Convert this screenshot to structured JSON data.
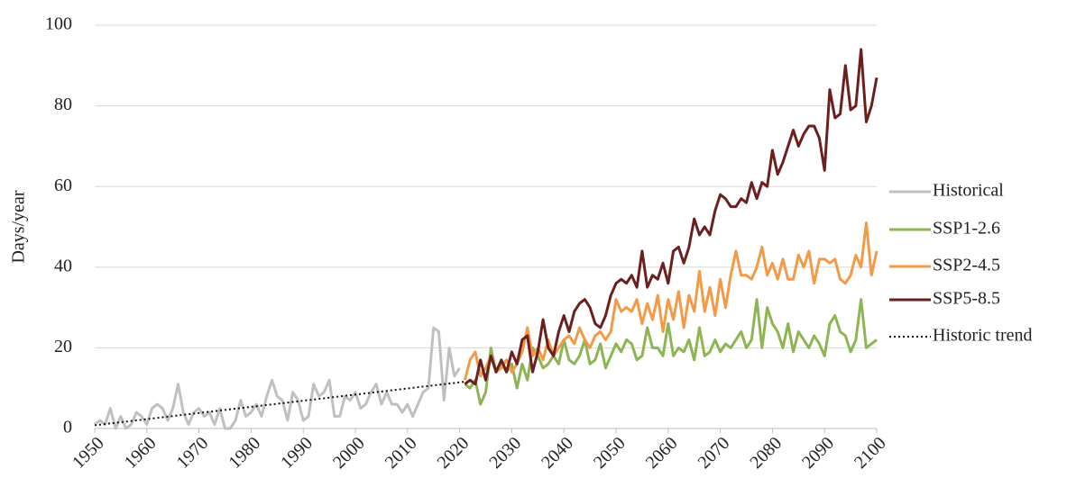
{
  "chart_data": {
    "type": "line",
    "y_label": "Days/year",
    "xlim": [
      1950,
      2100
    ],
    "xticks": [
      1950,
      1960,
      1970,
      1980,
      1990,
      2000,
      2010,
      2020,
      2030,
      2040,
      2050,
      2060,
      2070,
      2080,
      2090,
      2100
    ],
    "ylim": [
      0,
      100
    ],
    "yticks": [
      0,
      20,
      40,
      60,
      80,
      100
    ],
    "grid": true,
    "legend": "right",
    "series": [
      {
        "name": "Historical",
        "color": "#c0c0c0",
        "style": "solid",
        "x": [
          1950,
          1951,
          1952,
          1953,
          1954,
          1955,
          1956,
          1957,
          1958,
          1959,
          1960,
          1961,
          1962,
          1963,
          1964,
          1965,
          1966,
          1967,
          1968,
          1969,
          1970,
          1971,
          1972,
          1973,
          1974,
          1975,
          1976,
          1977,
          1978,
          1979,
          1980,
          1981,
          1982,
          1983,
          1984,
          1985,
          1986,
          1987,
          1988,
          1989,
          1990,
          1991,
          1992,
          1993,
          1994,
          1995,
          1996,
          1997,
          1998,
          1999,
          2000,
          2001,
          2002,
          2003,
          2004,
          2005,
          2006,
          2007,
          2008,
          2009,
          2010,
          2011,
          2012,
          2013,
          2014,
          2015,
          2016,
          2017,
          2018,
          2019,
          2020
        ],
        "values": [
          1,
          2,
          1,
          5,
          0,
          3,
          0,
          1,
          4,
          3,
          1,
          5,
          6,
          5,
          2,
          5,
          11,
          4,
          1,
          4,
          5,
          3,
          4,
          1,
          5,
          0,
          0,
          2,
          7,
          3,
          4,
          6,
          3,
          8,
          12,
          8,
          7,
          2,
          9,
          7,
          2,
          3,
          11,
          8,
          9,
          12,
          3,
          3,
          8,
          7,
          9,
          5,
          6,
          9,
          11,
          6,
          9,
          6,
          6,
          4,
          6,
          3,
          6,
          9,
          10,
          25,
          24,
          7,
          20,
          13,
          15
        ]
      },
      {
        "name": "SSP1-2.6",
        "color": "#8db554",
        "style": "solid",
        "x": [
          2021,
          2022,
          2023,
          2024,
          2025,
          2026,
          2027,
          2028,
          2029,
          2030,
          2031,
          2032,
          2033,
          2034,
          2035,
          2036,
          2037,
          2038,
          2039,
          2040,
          2041,
          2042,
          2043,
          2044,
          2045,
          2046,
          2047,
          2048,
          2049,
          2050,
          2051,
          2052,
          2053,
          2054,
          2055,
          2056,
          2057,
          2058,
          2059,
          2060,
          2061,
          2062,
          2063,
          2064,
          2065,
          2066,
          2067,
          2068,
          2069,
          2070,
          2071,
          2072,
          2073,
          2074,
          2075,
          2076,
          2077,
          2078,
          2079,
          2080,
          2081,
          2082,
          2083,
          2084,
          2085,
          2086,
          2087,
          2088,
          2089,
          2090,
          2091,
          2092,
          2093,
          2094,
          2095,
          2096,
          2097,
          2098,
          2099,
          2100
        ],
        "values": [
          11,
          10,
          12,
          6,
          9,
          20,
          14,
          16,
          14,
          16,
          10,
          16,
          12,
          20,
          18,
          15,
          16,
          18,
          16,
          22,
          17,
          16,
          18,
          22,
          16,
          17,
          21,
          15,
          18,
          21,
          19,
          22,
          21,
          17,
          18,
          25,
          20,
          20,
          18,
          26,
          18,
          20,
          19,
          22,
          17,
          25,
          18,
          19,
          22,
          19,
          21,
          20,
          22,
          24,
          20,
          22,
          32,
          20,
          30,
          26,
          24,
          20,
          26,
          19,
          24,
          22,
          20,
          23,
          21,
          18,
          26,
          28,
          24,
          23,
          19,
          22,
          32,
          20,
          21,
          22
        ]
      },
      {
        "name": "SSP2-4.5",
        "color": "#f39a48",
        "style": "solid",
        "x": [
          2021,
          2022,
          2023,
          2024,
          2025,
          2026,
          2027,
          2028,
          2029,
          2030,
          2031,
          2032,
          2033,
          2034,
          2035,
          2036,
          2037,
          2038,
          2039,
          2040,
          2041,
          2042,
          2043,
          2044,
          2045,
          2046,
          2047,
          2048,
          2049,
          2050,
          2051,
          2052,
          2053,
          2054,
          2055,
          2056,
          2057,
          2058,
          2059,
          2060,
          2061,
          2062,
          2063,
          2064,
          2065,
          2066,
          2067,
          2068,
          2069,
          2070,
          2071,
          2072,
          2073,
          2074,
          2075,
          2076,
          2077,
          2078,
          2079,
          2080,
          2081,
          2082,
          2083,
          2084,
          2085,
          2086,
          2087,
          2088,
          2089,
          2090,
          2091,
          2092,
          2093,
          2094,
          2095,
          2096,
          2097,
          2098,
          2099,
          2100
        ],
        "values": [
          12,
          17,
          19,
          13,
          15,
          18,
          14,
          15,
          17,
          14,
          16,
          19,
          25,
          18,
          20,
          17,
          22,
          18,
          20,
          22,
          23,
          21,
          25,
          22,
          20,
          23,
          24,
          22,
          24,
          32,
          29,
          30,
          29,
          32,
          26,
          31,
          27,
          33,
          24,
          32,
          27,
          34,
          25,
          33,
          29,
          39,
          29,
          35,
          28,
          37,
          30,
          38,
          44,
          38,
          38,
          37,
          40,
          45,
          38,
          41,
          37,
          42,
          37,
          37,
          43,
          40,
          44,
          36,
          42,
          42,
          41,
          42,
          37,
          36,
          38,
          43,
          40,
          51,
          38,
          44
        ]
      },
      {
        "name": "SSP5-8.5",
        "color": "#6b1f1f",
        "style": "solid",
        "x": [
          2021,
          2022,
          2023,
          2024,
          2025,
          2026,
          2027,
          2028,
          2029,
          2030,
          2031,
          2032,
          2033,
          2034,
          2035,
          2036,
          2037,
          2038,
          2039,
          2040,
          2041,
          2042,
          2043,
          2044,
          2045,
          2046,
          2047,
          2048,
          2049,
          2050,
          2051,
          2052,
          2053,
          2054,
          2055,
          2056,
          2057,
          2058,
          2059,
          2060,
          2061,
          2062,
          2063,
          2064,
          2065,
          2066,
          2067,
          2068,
          2069,
          2070,
          2071,
          2072,
          2073,
          2074,
          2075,
          2076,
          2077,
          2078,
          2079,
          2080,
          2081,
          2082,
          2083,
          2084,
          2085,
          2086,
          2087,
          2088,
          2089,
          2090,
          2091,
          2092,
          2093,
          2094,
          2095,
          2096,
          2097,
          2098,
          2099,
          2100
        ],
        "values": [
          11,
          12,
          11,
          17,
          12,
          18,
          14,
          17,
          14,
          19,
          16,
          22,
          23,
          14,
          19,
          27,
          20,
          18,
          24,
          28,
          24,
          29,
          31,
          32,
          30,
          26,
          25,
          28,
          33,
          36,
          37,
          36,
          38,
          35,
          44,
          35,
          38,
          37,
          41,
          36,
          44,
          45,
          41,
          45,
          52,
          48,
          50,
          48,
          54,
          58,
          57,
          55,
          55,
          57,
          56,
          61,
          57,
          61,
          60,
          69,
          63,
          66,
          70,
          74,
          70,
          73,
          75,
          75,
          72,
          64,
          84,
          77,
          78,
          90,
          79,
          80,
          94,
          76,
          80,
          87
        ]
      },
      {
        "name": "Historic trend",
        "color": "#111111",
        "style": "dotted",
        "x": [
          1950,
          2021
        ],
        "values": [
          0.8,
          11.6
        ]
      }
    ]
  }
}
